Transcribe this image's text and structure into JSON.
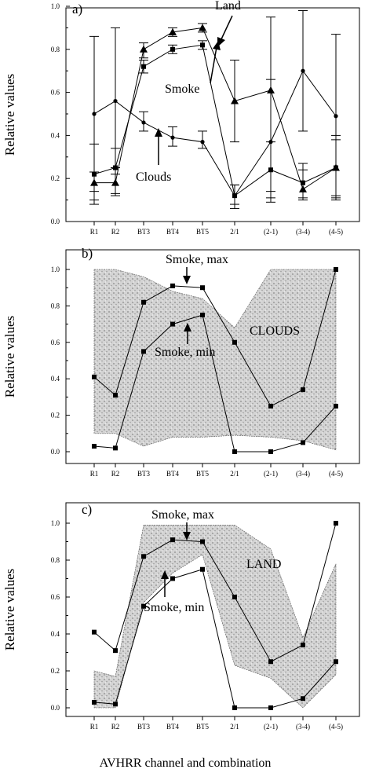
{
  "chart_data": [
    {
      "panel": "a)",
      "type": "line",
      "ylabel": "Relative values",
      "ylim": [
        0,
        1
      ],
      "yticks": [
        "0.0",
        "0.2",
        "0.4",
        "0.6",
        "0.8",
        "1.0"
      ],
      "categories": [
        "R1",
        "R2",
        "BT3",
        "BT4",
        "BT5",
        "2/1",
        "(2-1)",
        "(3-4)",
        "(4-5)"
      ],
      "series": [
        {
          "name": "Land",
          "marker": "triangle",
          "values": [
            0.18,
            0.18,
            0.8,
            0.88,
            0.9,
            0.56,
            0.61,
            0.15,
            0.25
          ],
          "err_low": [
            0.1,
            0.12,
            0.76,
            0.86,
            0.88,
            0.37,
            0.14,
            0.1,
            0.11
          ],
          "err_high": [
            0.23,
            0.25,
            0.83,
            0.9,
            0.92,
            0.75,
            0.66,
            0.27,
            0.4
          ]
        },
        {
          "name": "Smoke",
          "marker": "square",
          "values": [
            0.22,
            0.25,
            0.72,
            0.8,
            0.82,
            0.12,
            0.24,
            0.18,
            0.25
          ],
          "err_low": [
            0.08,
            0.13,
            0.69,
            0.78,
            0.8,
            0.06,
            0.11,
            0.11,
            0.12
          ],
          "err_high": [
            0.36,
            0.34,
            0.75,
            0.82,
            0.84,
            0.17,
            0.37,
            0.24,
            0.38
          ]
        },
        {
          "name": "Clouds",
          "marker": "circle",
          "values": [
            0.5,
            0.56,
            0.46,
            0.39,
            0.37,
            0.12,
            0.37,
            0.7,
            0.49
          ],
          "err_low": [
            0.14,
            0.22,
            0.42,
            0.35,
            0.34,
            0.08,
            0.09,
            0.42,
            0.1
          ],
          "err_high": [
            0.86,
            0.9,
            0.51,
            0.44,
            0.42,
            0.17,
            0.95,
            0.98,
            0.87
          ]
        }
      ],
      "annotations": [
        "Land",
        "Smoke",
        "Clouds"
      ]
    },
    {
      "panel": "b)",
      "type": "area",
      "ylabel": "Relative values",
      "ylim": [
        0,
        1
      ],
      "yticks": [
        "0.0",
        "0.2",
        "0.4",
        "0.6",
        "0.8",
        "1.0"
      ],
      "categories": [
        "R1",
        "R2",
        "BT3",
        "BT4",
        "BT5",
        "2/1",
        "(2-1)",
        "(3-4)",
        "(4-5)"
      ],
      "band": {
        "name": "CLOUDS",
        "upper": [
          1.0,
          1.0,
          0.96,
          0.88,
          0.84,
          0.68,
          1.0,
          1.0,
          1.0
        ],
        "lower": [
          0.1,
          0.1,
          0.03,
          0.08,
          0.08,
          0.09,
          0.08,
          0.06,
          0.01
        ]
      },
      "series": [
        {
          "name": "Smoke, max",
          "values": [
            0.41,
            0.31,
            0.82,
            0.91,
            0.9,
            0.6,
            0.25,
            0.34,
            1.0
          ]
        },
        {
          "name": "Smoke, min",
          "values": [
            0.03,
            0.02,
            0.55,
            0.7,
            0.75,
            0.0,
            0.0,
            0.05,
            0.25
          ]
        }
      ],
      "annotations": [
        "Smoke, max",
        "Smoke, min",
        "CLOUDS"
      ]
    },
    {
      "panel": "c)",
      "type": "area",
      "ylabel": "Relative values",
      "ylim": [
        0,
        1
      ],
      "yticks": [
        "0.0",
        "0.2",
        "0.4",
        "0.6",
        "0.8",
        "1.0"
      ],
      "categories": [
        "R1",
        "R2",
        "BT3",
        "BT4",
        "BT5",
        "2/1",
        "(2-1)",
        "(3-4)",
        "(4-5)"
      ],
      "band": {
        "name": "LAND",
        "upper": [
          0.2,
          0.17,
          0.99,
          0.99,
          0.99,
          0.99,
          0.86,
          0.38,
          0.78
        ],
        "lower": [
          0.0,
          0.0,
          0.57,
          0.73,
          0.83,
          0.23,
          0.16,
          0.0,
          0.18
        ]
      },
      "series": [
        {
          "name": "Smoke, max",
          "values": [
            0.41,
            0.31,
            0.82,
            0.91,
            0.9,
            0.6,
            0.25,
            0.34,
            1.0
          ]
        },
        {
          "name": "Smoke, min",
          "values": [
            0.03,
            0.02,
            0.55,
            0.7,
            0.75,
            0.0,
            0.0,
            0.05,
            0.25
          ]
        }
      ],
      "annotations": [
        "Smoke, max",
        "Smoke, min",
        "LAND"
      ]
    }
  ],
  "xlabel": "AVHRR channel and combination",
  "colors": {
    "ink": "#000000",
    "band_fill": "#c9c9c9",
    "background": "#ffffff"
  }
}
